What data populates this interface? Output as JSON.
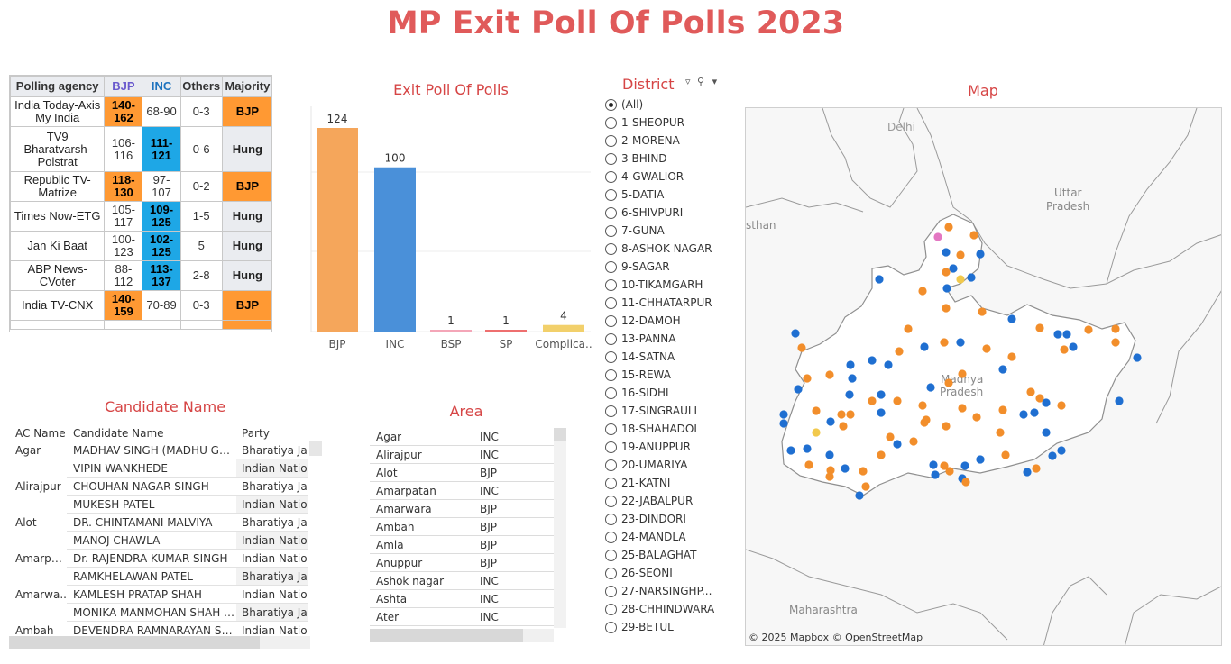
{
  "page": {
    "title": "MP Exit Poll Of Polls 2023"
  },
  "poll_table": {
    "headers": [
      "Polling agency",
      "BJP",
      "INC",
      "Others",
      "Majority"
    ],
    "rows": [
      {
        "agency": "India Today-Axis My India",
        "bjp": "140-162",
        "inc": "68-90",
        "others": "0-3",
        "majority": "BJP"
      },
      {
        "agency": "TV9 Bharatvarsh-Polstrat",
        "bjp": "106-116",
        "inc": "111-121",
        "others": "0-6",
        "majority": "Hung"
      },
      {
        "agency": "Republic TV-Matrize",
        "bjp": "118-130",
        "inc": "97-107",
        "others": "0-2",
        "majority": "BJP"
      },
      {
        "agency": "Times Now-ETG",
        "bjp": "105-117",
        "inc": "109-125",
        "others": "1-5",
        "majority": "Hung"
      },
      {
        "agency": "Jan Ki Baat",
        "bjp": "100-123",
        "inc": "102-125",
        "others": "5",
        "majority": "Hung"
      },
      {
        "agency": "ABP News-CVoter",
        "bjp": "88-112",
        "inc": "113-137",
        "others": "2-8",
        "majority": "Hung"
      },
      {
        "agency": "India TV-CNX",
        "bjp": "140-159",
        "inc": "70-89",
        "others": "0-3",
        "majority": "BJP"
      }
    ]
  },
  "bar_chart": {
    "title": "Exit Poll Of Polls"
  },
  "chart_data": {
    "type": "bar",
    "title": "Exit Poll Of Polls",
    "categories": [
      "BJP",
      "INC",
      "BSP",
      "SP",
      "Complica.."
    ],
    "values": [
      124,
      100,
      1,
      1,
      4
    ],
    "colors": [
      "#f5a65b",
      "#4a90d9",
      "#f4a6b8",
      "#ee6f6f",
      "#f2d06b"
    ],
    "ylim": [
      0,
      130
    ],
    "grid": true
  },
  "district": {
    "title": "District",
    "items": [
      "(All)",
      "1-SHEOPUR",
      "2-MORENA",
      "3-BHIND",
      "4-GWALIOR",
      "5-DATIA",
      "6-SHIVPURI",
      "7-GUNA",
      "8-ASHOK NAGAR",
      "9-SAGAR",
      "10-TIKAMGARH",
      "11-CHHATARPUR",
      "12-DAMOH",
      "13-PANNA",
      "14-SATNA",
      "15-REWA",
      "16-SIDHI",
      "17-SINGRAULI",
      "18-SHAHADOL",
      "19-ANUPPUR",
      "20-UMARIYA",
      "21-KATNI",
      "22-JABALPUR",
      "23-DINDORI",
      "24-MANDLA",
      "25-BALAGHAT",
      "26-SEONI",
      "27-NARSINGHP...",
      "28-CHHINDWARA",
      "29-BETUL"
    ],
    "selected": "(All)"
  },
  "map": {
    "title": "Map",
    "labels": {
      "delhi": "Delhi",
      "up": "Uttar Pradesh",
      "rajasthan": "sthan",
      "mp": "Madhya Pradesh",
      "maharashtra": "Maharashtra"
    },
    "credit": "© 2025 Mapbox © OpenStreetMap",
    "colors": {
      "bjp": "#f28e2b",
      "inc": "#1f6fd1",
      "other": "#f2c94c",
      "pink": "#e377c2"
    }
  },
  "candidate_table": {
    "title": "Candidate Name",
    "headers": [
      "AC Name",
      "Candidate Name",
      "Party"
    ],
    "rows": [
      {
        "ac": "Agar",
        "name": "MADHAV SINGH (MADHU GEHL..",
        "party": "Bharatiya Jan"
      },
      {
        "ac": "",
        "name": "VIPIN WANKHEDE",
        "party": "Indian Nation"
      },
      {
        "ac": "Alirajpur",
        "name": "CHOUHAN NAGAR SINGH",
        "party": "Bharatiya Jan"
      },
      {
        "ac": "",
        "name": "MUKESH PATEL",
        "party": "Indian Nation"
      },
      {
        "ac": "Alot",
        "name": "DR. CHINTAMANI MALVIYA",
        "party": "Bharatiya Jan"
      },
      {
        "ac": "",
        "name": "MANOJ CHAWLA",
        "party": "Indian Nation"
      },
      {
        "ac": "Amarpat..",
        "name": "Dr. RAJENDRA KUMAR SINGH",
        "party": "Indian Nation"
      },
      {
        "ac": "",
        "name": "RAMKHELAWAN PATEL",
        "party": "Bharatiya Jan"
      },
      {
        "ac": "Amarwa..",
        "name": "KAMLESH PRATAP SHAH",
        "party": "Indian Nation"
      },
      {
        "ac": "",
        "name": "MONIKA MANMOHAN SHAH B..",
        "party": "Bharatiya Jan"
      },
      {
        "ac": "Ambah",
        "name": "DEVENDRA RAMNARAYAN SAK..",
        "party": "Indian Nation"
      }
    ]
  },
  "area_table": {
    "title": "Area",
    "rows": [
      {
        "name": "Agar",
        "party": "INC"
      },
      {
        "name": "Alirajpur",
        "party": "INC"
      },
      {
        "name": "Alot",
        "party": "BJP"
      },
      {
        "name": "Amarpatan",
        "party": "INC"
      },
      {
        "name": "Amarwara",
        "party": "BJP"
      },
      {
        "name": "Ambah",
        "party": "BJP"
      },
      {
        "name": "Amla",
        "party": "BJP"
      },
      {
        "name": "Anuppur",
        "party": "BJP"
      },
      {
        "name": "Ashok nagar",
        "party": "INC"
      },
      {
        "name": "Ashta",
        "party": "INC"
      },
      {
        "name": "Ater",
        "party": "INC"
      }
    ]
  }
}
